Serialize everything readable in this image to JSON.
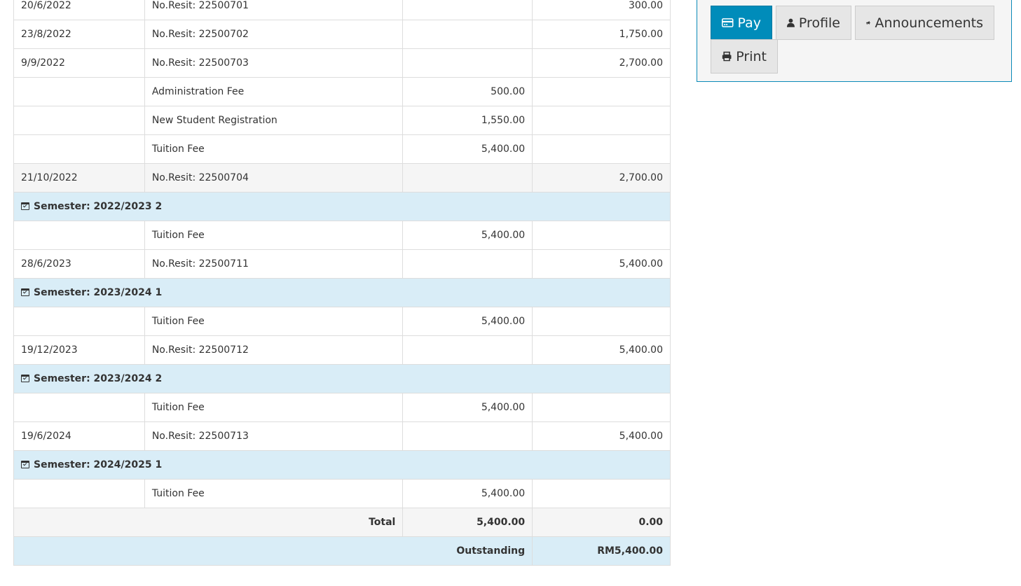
{
  "ledger": {
    "rows": [
      {
        "type": "normal",
        "date": "20/6/2022",
        "desc": "No.Resit: 22500701",
        "debit": "",
        "credit": "300.00"
      },
      {
        "type": "normal",
        "date": "23/8/2022",
        "desc": "No.Resit: 22500702",
        "debit": "",
        "credit": "1,750.00"
      },
      {
        "type": "normal",
        "date": "9/9/2022",
        "desc": "No.Resit: 22500703",
        "debit": "",
        "credit": "2,700.00"
      },
      {
        "type": "normal",
        "date": "",
        "desc": "Administration Fee",
        "debit": "500.00",
        "credit": ""
      },
      {
        "type": "normal",
        "date": "",
        "desc": "New Student Registration",
        "debit": "1,550.00",
        "credit": ""
      },
      {
        "type": "normal",
        "date": "",
        "desc": "Tuition Fee",
        "debit": "5,400.00",
        "credit": ""
      },
      {
        "type": "alt",
        "date": "21/10/2022",
        "desc": "No.Resit: 22500704",
        "debit": "",
        "credit": "2,700.00"
      },
      {
        "type": "sem",
        "label": "Semester: 2022/2023 2"
      },
      {
        "type": "normal",
        "date": "",
        "desc": "Tuition Fee",
        "debit": "5,400.00",
        "credit": ""
      },
      {
        "type": "normal",
        "date": "28/6/2023",
        "desc": "No.Resit: 22500711",
        "debit": "",
        "credit": "5,400.00"
      },
      {
        "type": "sem",
        "label": "Semester: 2023/2024 1"
      },
      {
        "type": "normal",
        "date": "",
        "desc": "Tuition Fee",
        "debit": "5,400.00",
        "credit": ""
      },
      {
        "type": "normal",
        "date": "19/12/2023",
        "desc": "No.Resit: 22500712",
        "debit": "",
        "credit": "5,400.00"
      },
      {
        "type": "sem",
        "label": "Semester: 2023/2024 2"
      },
      {
        "type": "normal",
        "date": "",
        "desc": "Tuition Fee",
        "debit": "5,400.00",
        "credit": ""
      },
      {
        "type": "normal",
        "date": "19/6/2024",
        "desc": "No.Resit: 22500713",
        "debit": "",
        "credit": "5,400.00"
      },
      {
        "type": "sem",
        "label": "Semester: 2024/2025 1"
      },
      {
        "type": "normal",
        "date": "",
        "desc": "Tuition Fee",
        "debit": "5,400.00",
        "credit": ""
      }
    ],
    "total": {
      "label": "Total",
      "debit": "5,400.00",
      "credit": "0.00"
    },
    "outstanding": {
      "label": "Outstanding",
      "value": "RM5,400.00"
    }
  },
  "actions": {
    "pay": "Pay",
    "profile": "Profile",
    "announcements": "Announcements",
    "print": "Print",
    "icons": {
      "pay": "credit-card-icon",
      "profile": "user-icon",
      "announcements": "bullhorn-icon",
      "print": "print-icon"
    }
  },
  "colors": {
    "primary": "#008cba",
    "semester_row": "#d9edf7",
    "panel_border": "#0a8ab8"
  }
}
